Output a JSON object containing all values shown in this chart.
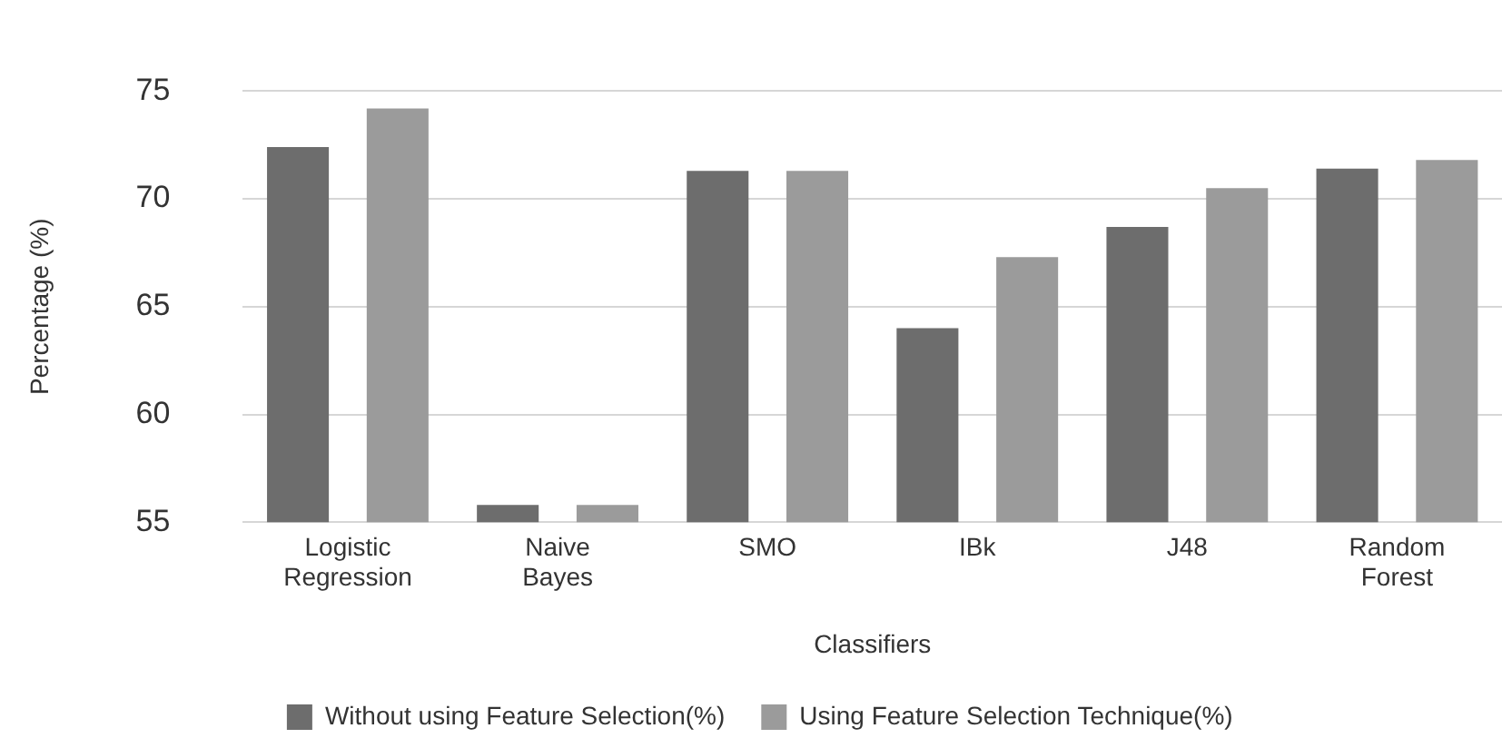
{
  "chart_data": {
    "type": "bar",
    "xlabel": "Classifiers",
    "ylabel": "Percentage (%)",
    "categories": [
      "Logistic Regression",
      "Naive Bayes",
      "SMO",
      "IBk",
      "J48",
      "Random Forest"
    ],
    "series": [
      {
        "name": "Without using Feature Selection(%)",
        "color": "#6d6d6d",
        "values": [
          72.4,
          55.8,
          71.3,
          64.0,
          68.7,
          71.4
        ]
      },
      {
        "name": "Using Feature Selection Technique(%)",
        "color": "#9b9b9b",
        "values": [
          74.2,
          55.8,
          71.3,
          67.3,
          70.5,
          71.8
        ]
      }
    ],
    "ylim": [
      55,
      75
    ],
    "yticks": [
      55,
      60,
      65,
      70,
      75
    ],
    "grid": "y",
    "legend": "bottom"
  }
}
